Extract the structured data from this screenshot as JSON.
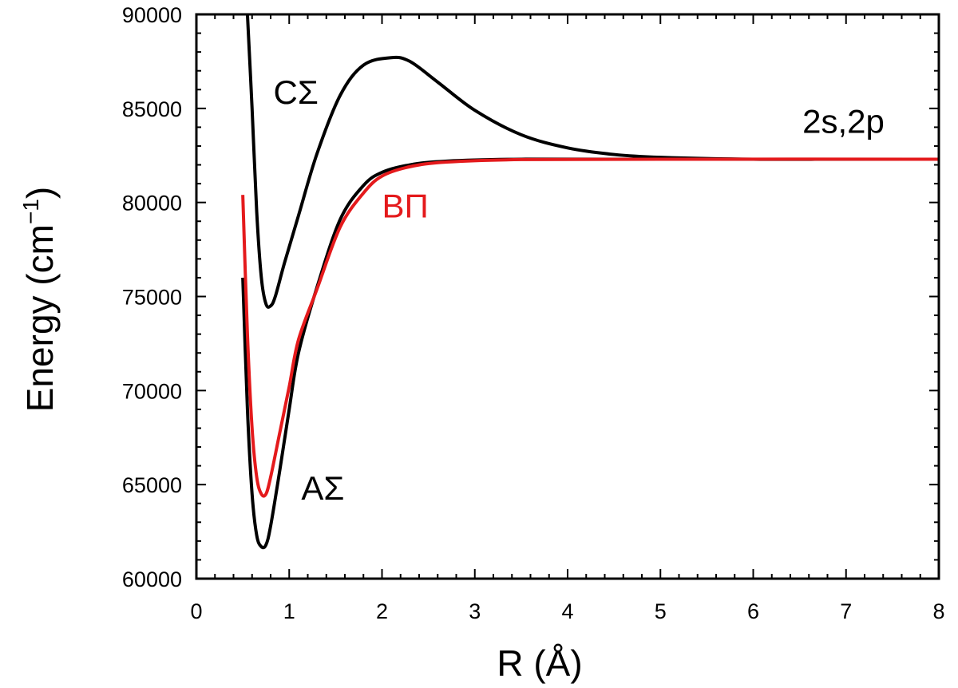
{
  "chart_data": {
    "type": "line",
    "title": "",
    "xlabel": "R (Å)",
    "ylabel_main": "Energy (cm",
    "ylabel_sup": "−1",
    "ylabel_close": ")",
    "xlim": [
      0,
      8
    ],
    "ylim": [
      60000,
      90000
    ],
    "xticks": [
      "0",
      "1",
      "2",
      "3",
      "4",
      "5",
      "6",
      "7",
      "8"
    ],
    "yticks": [
      "60000",
      "65000",
      "70000",
      "75000",
      "80000",
      "85000",
      "90000"
    ],
    "grid": false,
    "series": [
      {
        "name": "CΣ",
        "color": "#000000",
        "points": [
          [
            0.55,
            90000
          ],
          [
            0.6,
            85000
          ],
          [
            0.65,
            79500
          ],
          [
            0.7,
            76000
          ],
          [
            0.75,
            74600
          ],
          [
            0.8,
            74500
          ],
          [
            0.85,
            75000
          ],
          [
            0.95,
            76800
          ],
          [
            1.1,
            79300
          ],
          [
            1.3,
            82600
          ],
          [
            1.55,
            85700
          ],
          [
            1.8,
            87300
          ],
          [
            2.1,
            87700
          ],
          [
            2.3,
            87500
          ],
          [
            2.6,
            86400
          ],
          [
            3.0,
            84900
          ],
          [
            3.5,
            83600
          ],
          [
            4.0,
            82900
          ],
          [
            4.5,
            82550
          ],
          [
            5.0,
            82400
          ],
          [
            6.0,
            82300
          ],
          [
            7.0,
            82300
          ],
          [
            8.0,
            82300
          ]
        ]
      },
      {
        "name": "AΣ",
        "color": "#000000",
        "points": [
          [
            0.5,
            76000
          ],
          [
            0.55,
            69000
          ],
          [
            0.6,
            64500
          ],
          [
            0.65,
            62300
          ],
          [
            0.7,
            61700
          ],
          [
            0.75,
            61800
          ],
          [
            0.8,
            62800
          ],
          [
            0.9,
            65800
          ],
          [
            1.0,
            69000
          ],
          [
            1.1,
            72000
          ],
          [
            1.3,
            75500
          ],
          [
            1.55,
            79100
          ],
          [
            1.8,
            80900
          ],
          [
            2.0,
            81600
          ],
          [
            2.3,
            82000
          ],
          [
            2.7,
            82200
          ],
          [
            3.5,
            82300
          ],
          [
            5.0,
            82300
          ],
          [
            8.0,
            82300
          ]
        ]
      },
      {
        "name": "BΠ",
        "color": "#e41a1c",
        "points": [
          [
            0.5,
            80400
          ],
          [
            0.55,
            73000
          ],
          [
            0.6,
            68000
          ],
          [
            0.65,
            65400
          ],
          [
            0.7,
            64500
          ],
          [
            0.75,
            64500
          ],
          [
            0.8,
            65400
          ],
          [
            0.9,
            67800
          ],
          [
            1.0,
            70200
          ],
          [
            1.1,
            72700
          ],
          [
            1.3,
            75400
          ],
          [
            1.55,
            78700
          ],
          [
            1.8,
            80500
          ],
          [
            2.0,
            81400
          ],
          [
            2.3,
            81900
          ],
          [
            2.7,
            82150
          ],
          [
            3.5,
            82280
          ],
          [
            5.0,
            82300
          ],
          [
            8.0,
            82300
          ]
        ]
      }
    ],
    "annotations": [
      {
        "text": "CΣ",
        "x": 0.83,
        "y": 85250,
        "color": "#000000"
      },
      {
        "text": "AΣ",
        "x": 1.13,
        "y": 64200,
        "color": "#000000"
      },
      {
        "text": "BΠ",
        "x": 2.0,
        "y": 79200,
        "color": "#e41a1c"
      },
      {
        "text": "2s,2p",
        "x": 6.53,
        "y": 83700,
        "color": "#000000"
      }
    ]
  }
}
